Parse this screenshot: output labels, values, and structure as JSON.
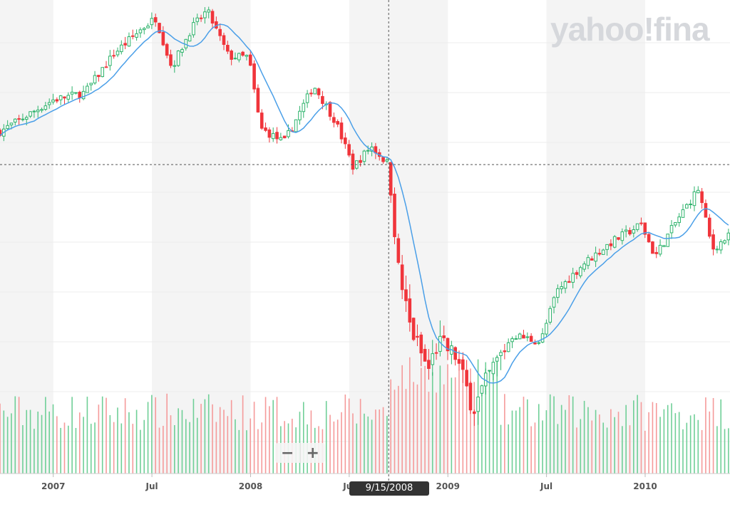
{
  "brand": {
    "logo_text": "yahoo!fina"
  },
  "zoom_controls": {
    "zoom_out": "−",
    "zoom_in": "+"
  },
  "crosshair": {
    "date_label": "9/15/2008",
    "price": 1225,
    "year": 2008.7
  },
  "colors": {
    "up": "#2db36b",
    "down": "#f0353b",
    "up_volume": "#6fcf97",
    "down_volume": "#f59a9a",
    "moving_average": "#4a9fe8",
    "band": "#f4f4f4"
  },
  "chart_data": {
    "type": "candlestick",
    "title": "",
    "x_range": [
      2006.73,
      2010.43
    ],
    "y_range": [
      600,
      1590
    ],
    "grid": true,
    "interval": "weekly",
    "moving_average_period": 10,
    "x_ticks": [
      {
        "value": 2007.0,
        "label": "2007"
      },
      {
        "value": 2007.5,
        "label": "Jul"
      },
      {
        "value": 2008.0,
        "label": "2008"
      },
      {
        "value": 2008.5,
        "label": "Jul"
      },
      {
        "value": 2009.0,
        "label": "2009"
      },
      {
        "value": 2009.5,
        "label": "Jul"
      },
      {
        "value": 2010.0,
        "label": "2010"
      }
    ],
    "close_anchors": [
      [
        2006.73,
        1298
      ],
      [
        2007.0,
        1368
      ],
      [
        2007.16,
        1384
      ],
      [
        2007.31,
        1471
      ],
      [
        2007.45,
        1526
      ],
      [
        2007.52,
        1549
      ],
      [
        2007.6,
        1439
      ],
      [
        2007.7,
        1526
      ],
      [
        2007.78,
        1565
      ],
      [
        2007.89,
        1463
      ],
      [
        2007.99,
        1463
      ],
      [
        2008.05,
        1305
      ],
      [
        2008.17,
        1274
      ],
      [
        2008.32,
        1400
      ],
      [
        2008.43,
        1321
      ],
      [
        2008.52,
        1219
      ],
      [
        2008.61,
        1266
      ],
      [
        2008.7,
        1225
      ],
      [
        2008.75,
        990
      ],
      [
        2008.81,
        865
      ],
      [
        2008.9,
        770
      ],
      [
        2008.95,
        833
      ],
      [
        2009.04,
        802
      ],
      [
        2009.13,
        684
      ],
      [
        2009.22,
        770
      ],
      [
        2009.33,
        849
      ],
      [
        2009.47,
        833
      ],
      [
        2009.55,
        944
      ],
      [
        2009.69,
        1007
      ],
      [
        2009.83,
        1054
      ],
      [
        2009.98,
        1093
      ],
      [
        2010.05,
        1022
      ],
      [
        2010.16,
        1101
      ],
      [
        2010.27,
        1172
      ],
      [
        2010.34,
        1038
      ],
      [
        2010.43,
        1069
      ]
    ]
  }
}
